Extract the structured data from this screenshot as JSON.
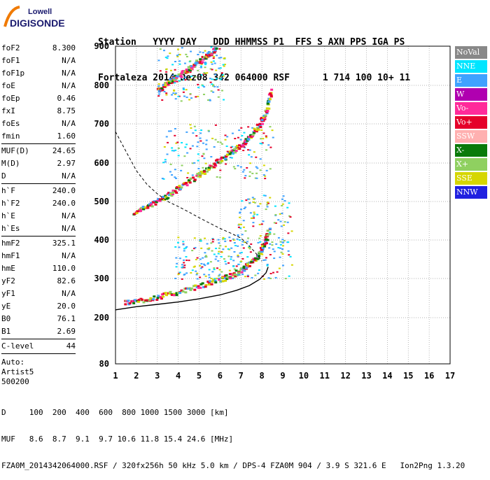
{
  "logo": {
    "brand_top": "Lowell",
    "brand_bottom": "DIGISONDE"
  },
  "header": {
    "line1": "Station   YYYY DAY   DDD HHMMSS P1  FFS S AXN PPS IGA PS",
    "line2": "Fortaleza 2014 Dez08 342 064000 RSF      1 714 100 10+ 11"
  },
  "params_top": [
    {
      "label": "foF2",
      "value": "8.300"
    },
    {
      "label": "foF1",
      "value": "N/A"
    },
    {
      "label": "foF1p",
      "value": "N/A"
    },
    {
      "label": "foE",
      "value": "N/A"
    },
    {
      "label": "foEp",
      "value": "0.46"
    },
    {
      "label": "fxI",
      "value": "8.75"
    },
    {
      "label": "foEs",
      "value": "N/A"
    },
    {
      "label": "fmin",
      "value": "1.60"
    }
  ],
  "params_muf": [
    {
      "label": "MUF(D)",
      "value": "24.65"
    },
    {
      "label": "M(D)",
      "value": "2.97"
    },
    {
      "label": "D",
      "value": "N/A"
    }
  ],
  "params_height": [
    {
      "label": "h`F",
      "value": "240.0"
    },
    {
      "label": "h`F2",
      "value": "240.0"
    },
    {
      "label": "h`E",
      "value": "N/A"
    },
    {
      "label": "h`Es",
      "value": "N/A"
    }
  ],
  "params_profile": [
    {
      "label": "hmF2",
      "value": "325.1"
    },
    {
      "label": "hmF1",
      "value": "N/A"
    },
    {
      "label": "hmE",
      "value": "110.0"
    },
    {
      "label": "yF2",
      "value": "82.6"
    },
    {
      "label": "yF1",
      "value": "N/A"
    },
    {
      "label": "yE",
      "value": "20.0"
    },
    {
      "label": "B0",
      "value": "76.1"
    },
    {
      "label": "B1",
      "value": "2.69"
    }
  ],
  "params_clevel": [
    {
      "label": "C-level",
      "value": "44"
    }
  ],
  "auto": [
    "Auto:",
    "Artist5",
    "500200"
  ],
  "legend": [
    {
      "label": "NoVal",
      "color": "#888888"
    },
    {
      "label": "NNE",
      "color": "#00e5ff"
    },
    {
      "label": "E",
      "color": "#3fa2ff"
    },
    {
      "label": "W",
      "color": "#b000b0"
    },
    {
      "label": "Vo-",
      "color": "#ff2a9a"
    },
    {
      "label": "Vo+",
      "color": "#e5002a"
    },
    {
      "label": "SSW",
      "color": "#ffb0b0"
    },
    {
      "label": "X-",
      "color": "#0a7a0a"
    },
    {
      "label": "X+",
      "color": "#8fd060"
    },
    {
      "label": "SSE",
      "color": "#d6d600"
    },
    {
      "label": "NNW",
      "color": "#2020e0"
    }
  ],
  "footer": {
    "d_line": "D     100  200  400  600  800 1000 1500 3000 [km]",
    "muf_line": "MUF   8.6  8.7  9.1  9.7 10.6 11.8 15.4 24.6 [MHz]",
    "file_line": "FZA0M_2014342064000.RSF / 320fx256h 50 kHz 5.0 km / DPS-4 FZA0M 904 / 3.9 S 321.6 E   Ion2Png 1.3.20"
  },
  "chart_data": {
    "type": "scatter",
    "title": "",
    "xlabel": "",
    "ylabel": "",
    "xlim": [
      1,
      17
    ],
    "ylim": [
      80,
      900
    ],
    "x_ticks": [
      1,
      2,
      3,
      4,
      5,
      6,
      7,
      8,
      9,
      10,
      11,
      12,
      13,
      14,
      15,
      16,
      17
    ],
    "y_ticks": [
      80,
      200,
      300,
      400,
      500,
      600,
      700,
      800,
      900
    ],
    "grid": "dotted",
    "traces": [
      {
        "name": "",
        "points": [
          [
            1.4,
            240
          ],
          [
            2.0,
            245
          ],
          [
            3.0,
            255
          ],
          [
            4.0,
            268
          ],
          [
            5.0,
            283
          ],
          [
            6.0,
            300
          ],
          [
            6.5,
            310
          ],
          [
            7.0,
            325
          ],
          [
            7.4,
            340
          ],
          [
            7.8,
            365
          ],
          [
            8.1,
            395
          ],
          [
            8.3,
            430
          ]
        ]
      },
      {
        "name": "",
        "points": [
          [
            1.8,
            470
          ],
          [
            2.5,
            490
          ],
          [
            3.2,
            510
          ],
          [
            3.8,
            530
          ],
          [
            4.5,
            555
          ],
          [
            5.2,
            580
          ],
          [
            5.8,
            605
          ],
          [
            6.4,
            625
          ],
          [
            7.0,
            650
          ],
          [
            7.5,
            675
          ],
          [
            7.9,
            705
          ],
          [
            8.2,
            740
          ],
          [
            8.4,
            790
          ]
        ]
      },
      {
        "name": "",
        "points": [
          [
            3.0,
            790
          ],
          [
            3.4,
            805
          ],
          [
            3.8,
            820
          ],
          [
            4.2,
            835
          ],
          [
            4.6,
            850
          ],
          [
            5.0,
            865
          ],
          [
            5.4,
            880
          ],
          [
            5.8,
            895
          ]
        ]
      }
    ],
    "clusters": [
      {
        "x": [
          3.0,
          6.2
        ],
        "y": [
          760,
          900
        ]
      },
      {
        "x": [
          3.2,
          8.5
        ],
        "y": [
          560,
          700
        ]
      },
      {
        "x": [
          6.8,
          9.4
        ],
        "y": [
          300,
          520
        ]
      },
      {
        "x": [
          3.8,
          7.0
        ],
        "y": [
          300,
          410
        ]
      }
    ],
    "profile_line": {
      "points": [
        [
          1,
          220
        ],
        [
          2,
          228
        ],
        [
          3,
          234
        ],
        [
          4,
          240
        ],
        [
          5,
          248
        ],
        [
          6,
          258
        ],
        [
          6.8,
          270
        ],
        [
          7.4,
          282
        ],
        [
          7.9,
          298
        ],
        [
          8.2,
          315
        ],
        [
          8.3,
          330
        ]
      ]
    },
    "dashed_line": {
      "points": [
        [
          1,
          680
        ],
        [
          1.5,
          630
        ],
        [
          2,
          580
        ],
        [
          2.5,
          545
        ],
        [
          3,
          520
        ],
        [
          3.5,
          500
        ],
        [
          4,
          487
        ],
        [
          4.5,
          473
        ],
        [
          5,
          458
        ],
        [
          5.5,
          444
        ],
        [
          6,
          430
        ],
        [
          6.5,
          418
        ],
        [
          7,
          405
        ],
        [
          7.4,
          385
        ],
        [
          7.8,
          360
        ],
        [
          8.0,
          345
        ]
      ]
    }
  }
}
